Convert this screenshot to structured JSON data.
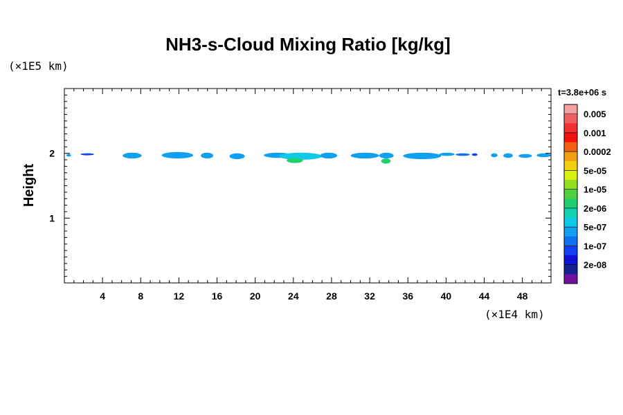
{
  "chart_data": {
    "type": "heatmap",
    "title": "NH3-s-Cloud Mixing Ratio [kg/kg]",
    "ylabel": "Height",
    "xunit": "(×1E4 km)",
    "yunit": "(×1E5 km)",
    "time_label": "t=3.8e+06 s",
    "xlim": [
      0,
      51
    ],
    "ylim": [
      0,
      3
    ],
    "xticks": [
      "4",
      "8",
      "12",
      "16",
      "20",
      "24",
      "28",
      "32",
      "36",
      "40",
      "44",
      "48"
    ],
    "xtick_values": [
      4,
      8,
      12,
      16,
      20,
      24,
      28,
      32,
      36,
      40,
      44,
      48
    ],
    "yticks": [
      "1",
      "2"
    ],
    "ytick_values": [
      1,
      2
    ],
    "colorbar": {
      "labels": [
        "0.005",
        "0.001",
        "0.0002",
        "5e-05",
        "1e-05",
        "2e-06",
        "5e-07",
        "1e-07",
        "2e-08"
      ],
      "colors": [
        "#f4a0a0",
        "#f06060",
        "#f03030",
        "#f01010",
        "#f06010",
        "#f0a010",
        "#f0d010",
        "#d8f010",
        "#90e020",
        "#50d040",
        "#20d070",
        "#10d0b0",
        "#10c8e8",
        "#10a0f0",
        "#1070f0",
        "#1040f0",
        "#1010d0",
        "#102090",
        "#7010a0"
      ]
    },
    "clouds": [
      {
        "x": 0.2,
        "w": 0.5,
        "y": 1.95,
        "h": 0.04,
        "color": "#10a0f0"
      },
      {
        "x": 1.7,
        "w": 1.4,
        "y": 1.97,
        "h": 0.03,
        "color": "#1040f0"
      },
      {
        "x": 6.1,
        "w": 2.0,
        "y": 1.92,
        "h": 0.09,
        "color": "#10a0f0"
      },
      {
        "x": 10.2,
        "w": 3.3,
        "y": 1.92,
        "h": 0.1,
        "color": "#10a0f0"
      },
      {
        "x": 14.3,
        "w": 1.3,
        "y": 1.92,
        "h": 0.09,
        "color": "#10a0f0"
      },
      {
        "x": 17.3,
        "w": 1.6,
        "y": 1.91,
        "h": 0.09,
        "color": "#10a0f0"
      },
      {
        "x": 20.9,
        "w": 2.9,
        "y": 1.93,
        "h": 0.08,
        "color": "#10a0f0"
      },
      {
        "x": 22.5,
        "w": 4.5,
        "y": 1.9,
        "h": 0.11,
        "color": "#10c8e8"
      },
      {
        "x": 23.3,
        "w": 1.7,
        "y": 1.85,
        "h": 0.08,
        "color": "#20d070"
      },
      {
        "x": 26.8,
        "w": 1.8,
        "y": 1.92,
        "h": 0.09,
        "color": "#10a0f0"
      },
      {
        "x": 30.0,
        "w": 3.0,
        "y": 1.92,
        "h": 0.09,
        "color": "#10a0f0"
      },
      {
        "x": 33.0,
        "w": 1.5,
        "y": 1.92,
        "h": 0.09,
        "color": "#10a0f0"
      },
      {
        "x": 33.2,
        "w": 1.0,
        "y": 1.84,
        "h": 0.08,
        "color": "#20d070"
      },
      {
        "x": 35.5,
        "w": 4.0,
        "y": 1.91,
        "h": 0.1,
        "color": "#10a0f0"
      },
      {
        "x": 39.3,
        "w": 1.6,
        "y": 1.96,
        "h": 0.05,
        "color": "#10a0f0"
      },
      {
        "x": 41.0,
        "w": 1.5,
        "y": 1.96,
        "h": 0.04,
        "color": "#1070f0"
      },
      {
        "x": 42.7,
        "w": 0.6,
        "y": 1.96,
        "h": 0.04,
        "color": "#1040f0"
      },
      {
        "x": 44.7,
        "w": 0.7,
        "y": 1.94,
        "h": 0.06,
        "color": "#10a0f0"
      },
      {
        "x": 46.0,
        "w": 1.0,
        "y": 1.93,
        "h": 0.07,
        "color": "#10a0f0"
      },
      {
        "x": 47.6,
        "w": 1.4,
        "y": 1.93,
        "h": 0.06,
        "color": "#10a0f0"
      },
      {
        "x": 49.5,
        "w": 1.5,
        "y": 1.94,
        "h": 0.06,
        "color": "#10a0f0"
      }
    ]
  }
}
